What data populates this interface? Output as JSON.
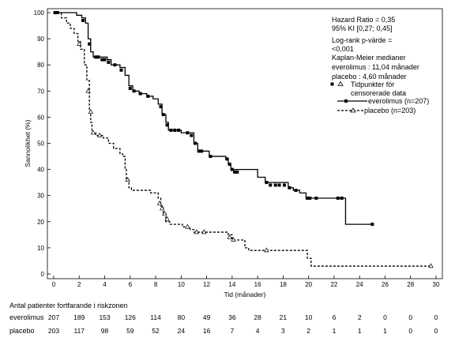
{
  "chart_data": {
    "type": "line",
    "subtype": "kaplan-meier",
    "title": "",
    "xlabel": "Tid (månader)",
    "ylabel": "Sannolikhet (%)",
    "xlim": [
      0,
      30
    ],
    "ylim": [
      0,
      100
    ],
    "xticks": [
      "0",
      "2",
      "4",
      "6",
      "8",
      "10",
      "12",
      "14",
      "16",
      "18",
      "20",
      "22",
      "24",
      "26",
      "28",
      "30"
    ],
    "yticks": [
      "0",
      "10",
      "20",
      "30",
      "40",
      "50",
      "60",
      "70",
      "80",
      "90",
      "100"
    ],
    "grid": false,
    "annotations": {
      "hr": "Hazard Ratio = 0,35",
      "ci": "95%   KI   [0,27;  0,45]",
      "logrank1": "Log-rank     p-värde     =",
      "logrank2": "<0,001",
      "km_title": "Kaplan-Meier medianer",
      "km_evero": "everolimus : 11,04 månader",
      "km_placebo": "placebo : 4,60 månader",
      "censor1": "Tidpunkter för",
      "censor2": "censorerade data"
    },
    "legend_position": "right",
    "series": [
      {
        "name": "everolimus (n=207)",
        "color": "#000000",
        "style": "solid",
        "marker": "square",
        "points": [
          [
            0,
            100
          ],
          [
            1.8,
            99
          ],
          [
            2.2,
            98
          ],
          [
            2.5,
            96
          ],
          [
            2.7,
            90
          ],
          [
            2.9,
            85
          ],
          [
            3.1,
            83
          ],
          [
            4.2,
            82
          ],
          [
            4.5,
            80
          ],
          [
            5.2,
            79
          ],
          [
            5.6,
            76
          ],
          [
            5.9,
            72
          ],
          [
            6.2,
            70
          ],
          [
            6.7,
            69
          ],
          [
            7.3,
            68
          ],
          [
            7.8,
            67
          ],
          [
            8.2,
            65
          ],
          [
            8.5,
            61
          ],
          [
            8.8,
            58
          ],
          [
            9.0,
            55
          ],
          [
            10.0,
            54
          ],
          [
            11.0,
            50
          ],
          [
            11.3,
            47
          ],
          [
            12.2,
            45
          ],
          [
            13.5,
            44
          ],
          [
            13.7,
            42
          ],
          [
            13.9,
            40
          ],
          [
            16.0,
            37
          ],
          [
            16.6,
            35
          ],
          [
            18.4,
            33
          ],
          [
            18.8,
            32
          ],
          [
            19.3,
            31
          ],
          [
            19.8,
            29
          ],
          [
            22.8,
            29
          ],
          [
            22.9,
            19
          ],
          [
            25.0,
            19
          ]
        ],
        "censored": [
          [
            0.1,
            100
          ],
          [
            0.3,
            100
          ],
          [
            2.3,
            97
          ],
          [
            2.8,
            88
          ],
          [
            3.3,
            83
          ],
          [
            3.5,
            83
          ],
          [
            3.8,
            82
          ],
          [
            4.0,
            82
          ],
          [
            4.3,
            81
          ],
          [
            4.8,
            80
          ],
          [
            5.3,
            78
          ],
          [
            6.0,
            71
          ],
          [
            6.3,
            70
          ],
          [
            6.8,
            69
          ],
          [
            7.4,
            68
          ],
          [
            8.4,
            64
          ],
          [
            8.6,
            61
          ],
          [
            8.9,
            57
          ],
          [
            9.2,
            55
          ],
          [
            9.5,
            55
          ],
          [
            9.8,
            55
          ],
          [
            10.5,
            54
          ],
          [
            10.8,
            53
          ],
          [
            11.1,
            50
          ],
          [
            11.4,
            47
          ],
          [
            11.6,
            47
          ],
          [
            12.3,
            45
          ],
          [
            13.6,
            44
          ],
          [
            13.8,
            42
          ],
          [
            14.0,
            40
          ],
          [
            14.2,
            39
          ],
          [
            14.4,
            39
          ],
          [
            16.7,
            35
          ],
          [
            17.0,
            34
          ],
          [
            17.4,
            34
          ],
          [
            17.7,
            34
          ],
          [
            18.1,
            34
          ],
          [
            18.5,
            33
          ],
          [
            19.0,
            32
          ],
          [
            19.9,
            29
          ],
          [
            20.1,
            29
          ],
          [
            20.6,
            29
          ],
          [
            22.3,
            29
          ],
          [
            22.6,
            29
          ],
          [
            25.0,
            19
          ]
        ]
      },
      {
        "name": "placebo (n=203)",
        "color": "#000000",
        "style": "dashed",
        "marker": "triangle-open",
        "points": [
          [
            0,
            100
          ],
          [
            0.6,
            98
          ],
          [
            1.0,
            96
          ],
          [
            1.3,
            94
          ],
          [
            1.6,
            92
          ],
          [
            1.9,
            89
          ],
          [
            2.1,
            86
          ],
          [
            2.4,
            80
          ],
          [
            2.6,
            74
          ],
          [
            2.8,
            63
          ],
          [
            2.9,
            58
          ],
          [
            3.0,
            54
          ],
          [
            3.3,
            53
          ],
          [
            3.9,
            52
          ],
          [
            4.3,
            50
          ],
          [
            4.7,
            48
          ],
          [
            5.2,
            46
          ],
          [
            5.4,
            45
          ],
          [
            5.6,
            40
          ],
          [
            5.7,
            36
          ],
          [
            5.9,
            33
          ],
          [
            6.1,
            32
          ],
          [
            7.6,
            31
          ],
          [
            8.2,
            29
          ],
          [
            8.4,
            26
          ],
          [
            8.6,
            23
          ],
          [
            8.8,
            20
          ],
          [
            9.1,
            19
          ],
          [
            10.1,
            18
          ],
          [
            10.7,
            17
          ],
          [
            11.0,
            16
          ],
          [
            13.7,
            15
          ],
          [
            14.0,
            13
          ],
          [
            14.6,
            13
          ],
          [
            15.0,
            10
          ],
          [
            15.3,
            9
          ],
          [
            19.5,
            9
          ],
          [
            19.9,
            6
          ],
          [
            20.2,
            3
          ],
          [
            29.6,
            3
          ]
        ],
        "censored": [
          [
            2.0,
            88
          ],
          [
            2.7,
            70
          ],
          [
            2.9,
            62
          ],
          [
            3.1,
            54
          ],
          [
            3.6,
            53
          ],
          [
            5.8,
            36
          ],
          [
            8.3,
            27
          ],
          [
            8.5,
            25
          ],
          [
            8.7,
            23
          ],
          [
            8.9,
            21
          ],
          [
            10.5,
            18
          ],
          [
            11.2,
            16
          ],
          [
            11.8,
            16
          ],
          [
            13.8,
            14
          ],
          [
            14.1,
            13
          ],
          [
            16.7,
            9
          ],
          [
            29.6,
            3
          ]
        ]
      }
    ],
    "risk_table": {
      "title": "Antal patienter fortfarande i riskzonen",
      "rows": [
        {
          "label": "everolimus",
          "values": [
            "207",
            "189",
            "153",
            "126",
            "114",
            "80",
            "49",
            "36",
            "28",
            "21",
            "10",
            "6",
            "2",
            "0",
            "0",
            "0"
          ]
        },
        {
          "label": "placebo",
          "values": [
            "203",
            "117",
            "98",
            "59",
            "52",
            "24",
            "16",
            "7",
            "4",
            "3",
            "2",
            "1",
            "1",
            "1",
            "0",
            "0"
          ]
        }
      ]
    }
  }
}
